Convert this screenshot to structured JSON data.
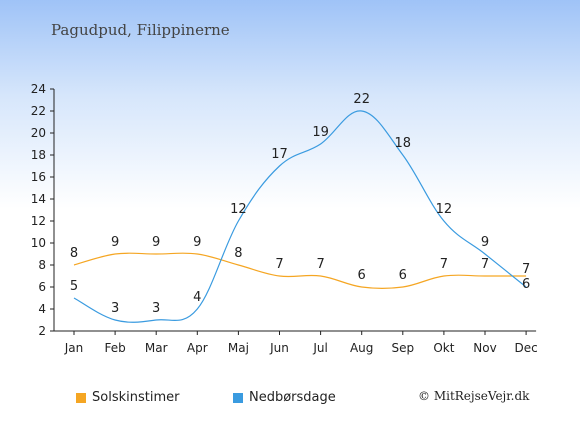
{
  "header": {
    "location": "Pagudpud, Filippinerne"
  },
  "chart_data": {
    "type": "line",
    "categories": [
      "Jan",
      "Feb",
      "Mar",
      "Apr",
      "Maj",
      "Jun",
      "Jul",
      "Aug",
      "Sep",
      "Okt",
      "Nov",
      "Dec"
    ],
    "series": [
      {
        "name": "Solskinstimer",
        "color": "#f5a623",
        "values": [
          8,
          9,
          9,
          9,
          8,
          7,
          7,
          6,
          6,
          7,
          7,
          7
        ]
      },
      {
        "name": "Nedbørsdage",
        "color": "#3a9be0",
        "values": [
          5,
          3,
          3,
          4,
          12,
          17,
          19,
          22,
          18,
          12,
          9,
          6
        ]
      }
    ],
    "ylim": [
      2,
      24
    ],
    "yticks": [
      "2",
      "4",
      "6",
      "8",
      "10",
      "12",
      "14",
      "16",
      "18",
      "20",
      "22",
      "24"
    ],
    "grid": false,
    "legend_position": "bottom-left"
  },
  "legend": {
    "items": [
      {
        "label": "Solskinstimer",
        "color": "#f5a623"
      },
      {
        "label": "Nedbørsdage",
        "color": "#3a9be0"
      }
    ]
  },
  "footer": {
    "credit": "© MitRejseVejr.dk"
  }
}
